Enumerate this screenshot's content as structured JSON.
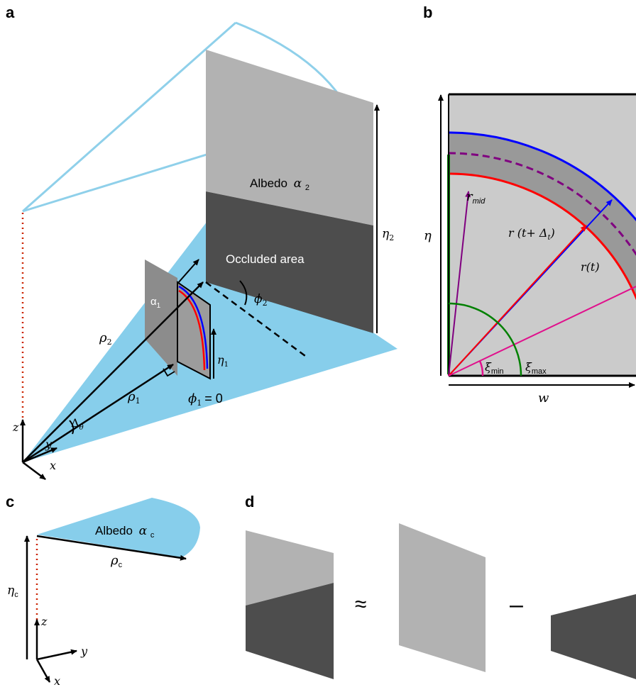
{
  "panels": {
    "a": "a",
    "b": "b",
    "c": "c",
    "d": "d"
  },
  "panel_a": {
    "albedo2": "Albedo",
    "alpha2": "α",
    "alpha2_sub": "2",
    "occluded": "Occluded area",
    "eta2": "η",
    "eta2_sub": "2",
    "phi2": "ϕ",
    "phi2_sub": "2",
    "alpha1": "α",
    "alpha1_sub": "1",
    "rho2": "ρ",
    "rho2_sub": "2",
    "rho1": "ρ",
    "rho1_sub": "1",
    "eta1": "η",
    "eta1_sub": "1",
    "phi1": "ϕ",
    "phi1_sub": "1",
    "phi1_value": "= 0",
    "delta": "Δ",
    "delta_sub": "θ",
    "z": "z",
    "y": "y",
    "x": "x"
  },
  "panel_b": {
    "eta": "η",
    "w": "w",
    "r_mid": "r",
    "r_mid_sub": "mid",
    "r_t_delta": "r (t+ Δ",
    "r_t_delta_sub": "t",
    "r_t_delta_close": ")",
    "r_t": "r(t)",
    "xi_min": "ξ",
    "xi_min_sub": "min",
    "xi_max": "ξ",
    "xi_max_sub": "max"
  },
  "panel_c": {
    "albedo": "Albedo",
    "alpha_c": "α",
    "alpha_c_sub": "c",
    "rho_c": "ρ",
    "rho_c_sub": "c",
    "eta_c": "η",
    "eta_c_sub": "c",
    "z": "z",
    "y": "y",
    "x": "x"
  },
  "panel_d": {
    "approx": "≈",
    "minus": "–"
  },
  "colors": {
    "sky_blue": "#87ceeb",
    "light_blue_outline": "#8fd0ea",
    "light_gray": "#b2b2b2",
    "dark_gray": "#4d4d4d",
    "panel_b_bg": "#cbcbcb",
    "band_gray": "#999999",
    "red": "#ff0000",
    "blue": "#0000ff",
    "purple": "#800080",
    "green": "#008000",
    "magenta": "#e0108c",
    "dotted_red": "#cc2200"
  }
}
